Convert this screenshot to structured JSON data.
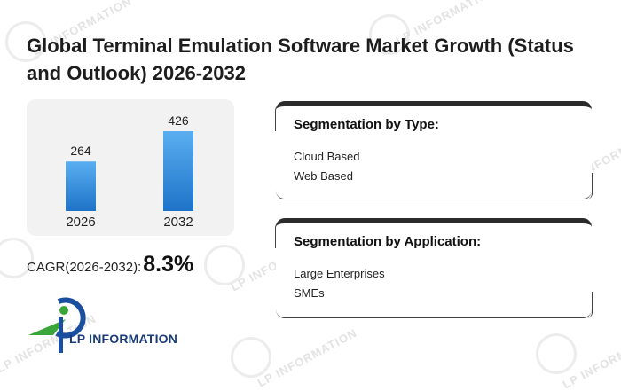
{
  "title": "Global Terminal Emulation Software Market Growth (Status and Outlook) 2026-2032",
  "chart_data": {
    "type": "bar",
    "categories": [
      "2026",
      "2032"
    ],
    "values": [
      264,
      426
    ],
    "title": "",
    "xlabel": "",
    "ylabel": "",
    "ylim": [
      0,
      500
    ],
    "colors": {
      "bar_top": "#5aaef0",
      "bar_bottom": "#1e73c8"
    }
  },
  "cagr": {
    "label": "CAGR(2026-2032):",
    "value": "8.3%"
  },
  "segmentation_type": {
    "heading": "Segmentation by Type:",
    "items": [
      "Cloud Based",
      "Web Based"
    ]
  },
  "segmentation_application": {
    "heading": "Segmentation by Application:",
    "items": [
      "Large Enterprises",
      "SMEs"
    ]
  },
  "logo": {
    "text": "LP INFORMATION",
    "colors": {
      "green": "#3aa63a",
      "blue": "#1a4fa0",
      "dark": "#1a3d7a"
    }
  },
  "watermark": {
    "text": "LP INFORMATION",
    "icon": "lp-logo-icon"
  }
}
